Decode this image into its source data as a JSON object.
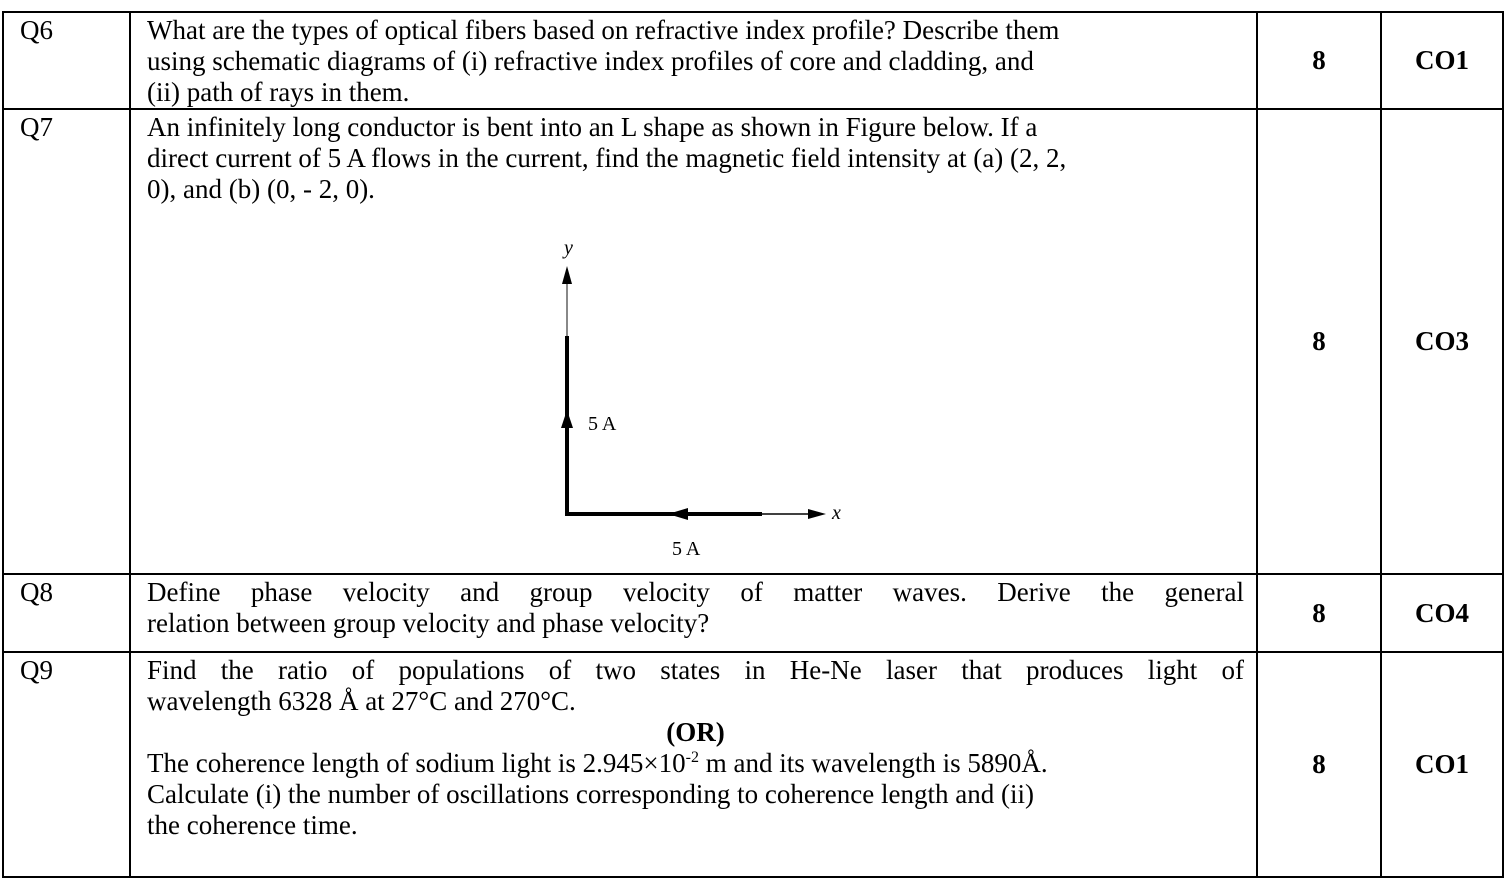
{
  "rows": [
    {
      "number": "Q6",
      "lines": [
        "What are the types of optical fibers based on refractive index profile? Describe them",
        "using schematic diagrams of (i) refractive index profiles of core and cladding, and",
        "(ii) path of rays in them."
      ],
      "marks": "8",
      "co": "CO1"
    },
    {
      "number": "Q7",
      "lines": [
        "An infinitely long conductor is bent into an L shape as shown in Figure below. If a",
        "direct current of 5 A flows in the current, find the magnetic field intensity at (a) (2, 2,",
        "0), and (b) (0, - 2, 0)."
      ],
      "figure": {
        "y_label": "y",
        "x_label": "x",
        "current_vertical": "5 A",
        "current_horizontal": "5 A"
      },
      "marks": "8",
      "co": "CO3"
    },
    {
      "number": "Q8",
      "lines": [
        "Define phase velocity and group velocity of matter waves. Derive the general",
        "relation between group velocity and phase velocity?"
      ],
      "marks": "8",
      "co": "CO4"
    },
    {
      "number": "Q9",
      "lines": [
        "Find the ratio of populations of two states in He-Ne laser that produces light of",
        "wavelength 6328 Å at 27°C and 270°C."
      ],
      "or": "(OR)",
      "alt_first": {
        "before": "The coherence length of sodium light is 2.945×10",
        "sup": "-2",
        "after": " m and its wavelength is 5890Å."
      },
      "alt_lines": [
        "Calculate (i) the number of oscillations corresponding to coherence length and (ii)",
        "the coherence time."
      ],
      "marks": "8",
      "co": "CO1"
    }
  ]
}
